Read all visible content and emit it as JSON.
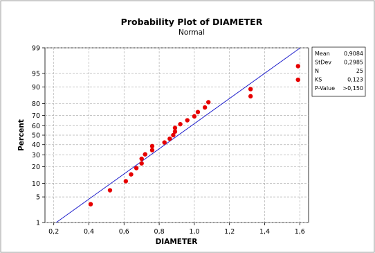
{
  "chart_data": {
    "type": "scatter",
    "title": "Probability Plot of DIAMETER",
    "subtitle": "Normal",
    "xlabel": "DIAMETER",
    "ylabel": "Percent",
    "xlim": [
      0.15,
      1.65
    ],
    "x_ticks": [
      "0,2",
      "0,4",
      "0,6",
      "0,8",
      "1,0",
      "1,2",
      "1,4",
      "1,6"
    ],
    "x_tick_values": [
      0.2,
      0.4,
      0.6,
      0.8,
      1.0,
      1.2,
      1.4,
      1.6
    ],
    "y_ticks": [
      "1",
      "5",
      "10",
      "20",
      "30",
      "40",
      "50",
      "60",
      "70",
      "80",
      "90",
      "95",
      "99"
    ],
    "y_tick_values": [
      1,
      5,
      10,
      20,
      30,
      40,
      50,
      60,
      70,
      80,
      90,
      95,
      99
    ],
    "y_scale": "normal-probability",
    "grid": true,
    "points": [
      {
        "x": 0.41,
        "y": 3.3
      },
      {
        "x": 0.52,
        "y": 7.1
      },
      {
        "x": 0.61,
        "y": 11.0
      },
      {
        "x": 0.64,
        "y": 14.8
      },
      {
        "x": 0.67,
        "y": 19.0
      },
      {
        "x": 0.7,
        "y": 22.6
      },
      {
        "x": 0.7,
        "y": 26.5
      },
      {
        "x": 0.72,
        "y": 30.5
      },
      {
        "x": 0.76,
        "y": 34.5
      },
      {
        "x": 0.76,
        "y": 38.5
      },
      {
        "x": 0.83,
        "y": 42.3
      },
      {
        "x": 0.86,
        "y": 46.2
      },
      {
        "x": 0.88,
        "y": 50.0
      },
      {
        "x": 0.89,
        "y": 53.8
      },
      {
        "x": 0.89,
        "y": 57.7
      },
      {
        "x": 0.92,
        "y": 61.5
      },
      {
        "x": 0.96,
        "y": 65.4
      },
      {
        "x": 1.0,
        "y": 69.2
      },
      {
        "x": 1.02,
        "y": 73.1
      },
      {
        "x": 1.06,
        "y": 77.0
      },
      {
        "x": 1.08,
        "y": 81.0
      },
      {
        "x": 1.32,
        "y": 85.0
      },
      {
        "x": 1.32,
        "y": 89.0
      },
      {
        "x": 1.59,
        "y": 93.0
      },
      {
        "x": 1.59,
        "y": 96.7
      }
    ],
    "fit_line": {
      "mean": 0.9084,
      "stdev": 0.2985
    },
    "stats": [
      {
        "label": "Mean",
        "value": "0,9084"
      },
      {
        "label": "StDev",
        "value": "0,2985"
      },
      {
        "label": "N",
        "value": "25"
      },
      {
        "label": "KS",
        "value": "0,123"
      },
      {
        "label": "P-Value",
        "value": ">0,150"
      }
    ],
    "colors": {
      "points": "#e60000",
      "line": "#1f1fcc",
      "grid": "#b0b0b0"
    }
  }
}
